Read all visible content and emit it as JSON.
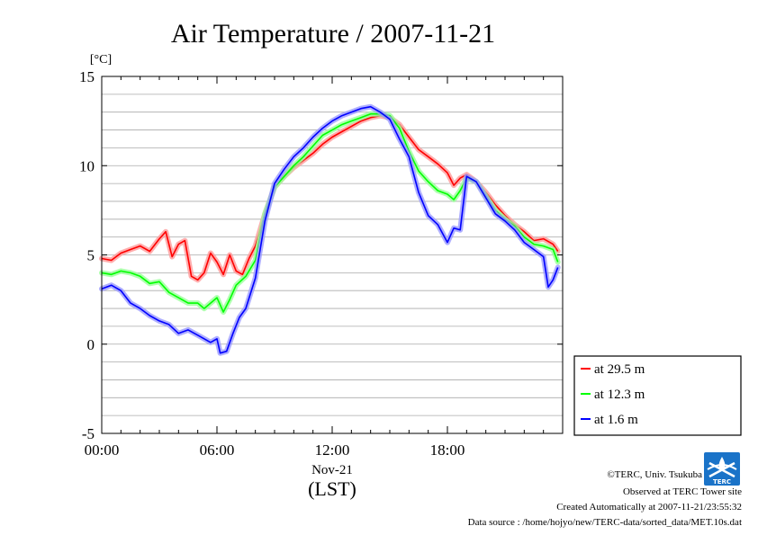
{
  "chart_data": {
    "type": "line",
    "title": "Air Temperature / 2007-11-21",
    "y_unit": "[°C]",
    "ylim": [
      -5,
      15
    ],
    "y_ticks": [
      -5,
      0,
      5,
      10,
      15
    ],
    "xlim": [
      "00:00",
      "24:00"
    ],
    "x_ticks": [
      "00:00",
      "06:00",
      "12:00",
      "18:00"
    ],
    "x_date_label": "Nov-21",
    "x_zone_label": "(LST)",
    "grid": "horizontal, every 1 °C",
    "legend_position": "right, below plot top",
    "series": [
      {
        "name": "at 29.5 m",
        "color": "#ff0000",
        "points": [
          [
            "00:00",
            4.8
          ],
          [
            "00:30",
            4.7
          ],
          [
            "01:00",
            5.1
          ],
          [
            "01:30",
            5.3
          ],
          [
            "02:00",
            5.5
          ],
          [
            "02:30",
            5.2
          ],
          [
            "03:00",
            5.9
          ],
          [
            "03:20",
            6.3
          ],
          [
            "03:40",
            4.9
          ],
          [
            "04:00",
            5.6
          ],
          [
            "04:20",
            5.8
          ],
          [
            "04:40",
            3.8
          ],
          [
            "05:00",
            3.6
          ],
          [
            "05:20",
            4.0
          ],
          [
            "05:40",
            5.1
          ],
          [
            "06:00",
            4.6
          ],
          [
            "06:20",
            3.9
          ],
          [
            "06:40",
            5.0
          ],
          [
            "07:00",
            4.1
          ],
          [
            "07:20",
            3.9
          ],
          [
            "07:40",
            4.8
          ],
          [
            "08:00",
            5.5
          ],
          [
            "08:30",
            7.3
          ],
          [
            "09:00",
            8.8
          ],
          [
            "09:30",
            9.4
          ],
          [
            "10:00",
            9.9
          ],
          [
            "10:30",
            10.3
          ],
          [
            "11:00",
            10.7
          ],
          [
            "11:30",
            11.2
          ],
          [
            "12:00",
            11.6
          ],
          [
            "12:30",
            11.9
          ],
          [
            "13:00",
            12.2
          ],
          [
            "13:30",
            12.5
          ],
          [
            "14:00",
            12.7
          ],
          [
            "14:30",
            12.8
          ],
          [
            "15:00",
            12.7
          ],
          [
            "15:30",
            12.3
          ],
          [
            "16:00",
            11.6
          ],
          [
            "16:30",
            10.9
          ],
          [
            "17:00",
            10.5
          ],
          [
            "17:30",
            10.1
          ],
          [
            "18:00",
            9.6
          ],
          [
            "18:20",
            8.9
          ],
          [
            "18:40",
            9.3
          ],
          [
            "19:00",
            9.5
          ],
          [
            "19:30",
            9.1
          ],
          [
            "20:00",
            8.5
          ],
          [
            "20:30",
            7.8
          ],
          [
            "21:00",
            7.2
          ],
          [
            "21:30",
            6.7
          ],
          [
            "22:00",
            6.3
          ],
          [
            "22:30",
            5.8
          ],
          [
            "23:00",
            5.9
          ],
          [
            "23:30",
            5.6
          ],
          [
            "23:45",
            5.2
          ]
        ]
      },
      {
        "name": "at 12.3 m",
        "color": "#00ff00",
        "points": [
          [
            "00:00",
            4.0
          ],
          [
            "00:30",
            3.9
          ],
          [
            "01:00",
            4.1
          ],
          [
            "01:30",
            4.0
          ],
          [
            "02:00",
            3.8
          ],
          [
            "02:30",
            3.4
          ],
          [
            "03:00",
            3.5
          ],
          [
            "03:30",
            2.9
          ],
          [
            "04:00",
            2.6
          ],
          [
            "04:30",
            2.3
          ],
          [
            "05:00",
            2.3
          ],
          [
            "05:20",
            2.0
          ],
          [
            "05:40",
            2.3
          ],
          [
            "06:00",
            2.6
          ],
          [
            "06:20",
            1.8
          ],
          [
            "06:40",
            2.5
          ],
          [
            "07:00",
            3.3
          ],
          [
            "07:30",
            3.8
          ],
          [
            "08:00",
            4.7
          ],
          [
            "08:30",
            7.3
          ],
          [
            "09:00",
            8.8
          ],
          [
            "09:30",
            9.4
          ],
          [
            "10:00",
            10.0
          ],
          [
            "10:30",
            10.5
          ],
          [
            "11:00",
            11.1
          ],
          [
            "11:30",
            11.7
          ],
          [
            "12:00",
            12.0
          ],
          [
            "12:30",
            12.3
          ],
          [
            "13:00",
            12.5
          ],
          [
            "13:30",
            12.7
          ],
          [
            "14:00",
            12.9
          ],
          [
            "14:30",
            12.9
          ],
          [
            "15:00",
            12.8
          ],
          [
            "15:30",
            12.1
          ],
          [
            "16:00",
            10.8
          ],
          [
            "16:30",
            9.7
          ],
          [
            "17:00",
            9.1
          ],
          [
            "17:30",
            8.6
          ],
          [
            "18:00",
            8.4
          ],
          [
            "18:20",
            8.1
          ],
          [
            "18:40",
            8.6
          ],
          [
            "19:00",
            9.3
          ],
          [
            "19:30",
            9.1
          ],
          [
            "20:00",
            8.3
          ],
          [
            "20:30",
            7.5
          ],
          [
            "21:00",
            7.0
          ],
          [
            "21:30",
            6.6
          ],
          [
            "22:00",
            6.0
          ],
          [
            "22:30",
            5.6
          ],
          [
            "23:00",
            5.5
          ],
          [
            "23:30",
            5.3
          ],
          [
            "23:45",
            4.6
          ]
        ]
      },
      {
        "name": "at 1.6 m",
        "color": "#0000ff",
        "points": [
          [
            "00:00",
            3.1
          ],
          [
            "00:30",
            3.3
          ],
          [
            "01:00",
            3.0
          ],
          [
            "01:30",
            2.3
          ],
          [
            "02:00",
            2.0
          ],
          [
            "02:30",
            1.6
          ],
          [
            "03:00",
            1.3
          ],
          [
            "03:30",
            1.1
          ],
          [
            "04:00",
            0.6
          ],
          [
            "04:30",
            0.8
          ],
          [
            "05:00",
            0.5
          ],
          [
            "05:20",
            0.3
          ],
          [
            "05:40",
            0.1
          ],
          [
            "06:00",
            0.3
          ],
          [
            "06:10",
            -0.5
          ],
          [
            "06:30",
            -0.4
          ],
          [
            "06:50",
            0.6
          ],
          [
            "07:10",
            1.5
          ],
          [
            "07:30",
            2.0
          ],
          [
            "08:00",
            3.7
          ],
          [
            "08:30",
            6.9
          ],
          [
            "09:00",
            9.0
          ],
          [
            "09:30",
            9.8
          ],
          [
            "10:00",
            10.5
          ],
          [
            "10:30",
            11.0
          ],
          [
            "11:00",
            11.6
          ],
          [
            "11:30",
            12.1
          ],
          [
            "12:00",
            12.5
          ],
          [
            "12:30",
            12.8
          ],
          [
            "13:00",
            13.0
          ],
          [
            "13:30",
            13.2
          ],
          [
            "14:00",
            13.3
          ],
          [
            "14:30",
            13.0
          ],
          [
            "15:00",
            12.6
          ],
          [
            "15:30",
            11.5
          ],
          [
            "16:00",
            10.5
          ],
          [
            "16:30",
            8.5
          ],
          [
            "17:00",
            7.2
          ],
          [
            "17:30",
            6.7
          ],
          [
            "18:00",
            5.7
          ],
          [
            "18:20",
            6.5
          ],
          [
            "18:40",
            6.4
          ],
          [
            "19:00",
            9.4
          ],
          [
            "19:30",
            9.1
          ],
          [
            "20:00",
            8.2
          ],
          [
            "20:30",
            7.3
          ],
          [
            "21:00",
            6.9
          ],
          [
            "21:30",
            6.4
          ],
          [
            "22:00",
            5.7
          ],
          [
            "22:30",
            5.3
          ],
          [
            "23:00",
            4.9
          ],
          [
            "23:15",
            3.2
          ],
          [
            "23:30",
            3.6
          ],
          [
            "23:45",
            4.3
          ]
        ]
      }
    ]
  },
  "footer": {
    "copyright": "©TERC, Univ. Tsukuba",
    "observed": "Observed at TERC Tower site",
    "created": "Created Automatically at 2007-11-21/23:55:32",
    "source": "Data source : /home/hojyo/new/TERC-data/sorted_data/MET.10s.dat",
    "logo_text": "TERC"
  }
}
